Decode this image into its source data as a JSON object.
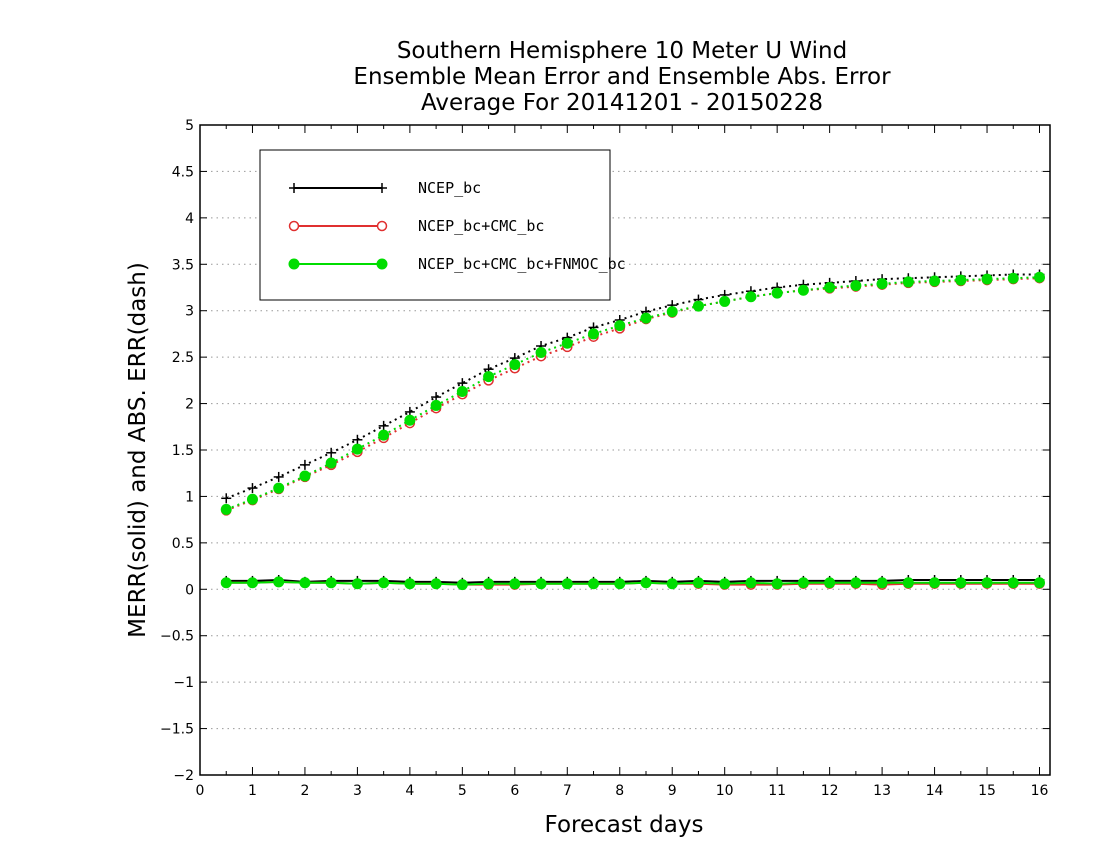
{
  "chart_data": {
    "type": "line",
    "title": [
      "Southern Hemisphere 10 Meter U Wind",
      "Ensemble Mean Error and Ensemble Abs. Error",
      "Average For 20141201 - 20150228"
    ],
    "xlabel": "Forecast days",
    "ylabel": "MERR(solid) and ABS. ERR(dash)",
    "xlim": [
      0,
      16.2
    ],
    "ylim": [
      -2,
      5
    ],
    "xticks": [
      0,
      1,
      2,
      3,
      4,
      5,
      6,
      7,
      8,
      9,
      10,
      11,
      12,
      13,
      14,
      15,
      16
    ],
    "yticks": [
      -2,
      -1.5,
      -1,
      -0.5,
      0,
      0.5,
      1,
      1.5,
      2,
      2.5,
      3,
      3.5,
      4,
      4.5,
      5
    ],
    "ytick_labels": [
      "−2",
      "−1.5",
      "−1",
      "−0.5",
      "0",
      "0.5",
      "1",
      "1.5",
      "2",
      "2.5",
      "3",
      "3.5",
      "4",
      "4.5",
      "5"
    ],
    "grid": "horizontal dotted",
    "legend_position": "top-left",
    "x": [
      0.5,
      1,
      1.5,
      2,
      2.5,
      3,
      3.5,
      4,
      4.5,
      5,
      5.5,
      6,
      6.5,
      7,
      7.5,
      8,
      8.5,
      9,
      9.5,
      10,
      10.5,
      11,
      11.5,
      12,
      12.5,
      13,
      13.5,
      14,
      14.5,
      15,
      15.5,
      16
    ],
    "series": [
      {
        "name": "NCEP_bc",
        "color": "#000000",
        "marker": "plus",
        "merr": [
          0.09,
          0.09,
          0.1,
          0.08,
          0.09,
          0.09,
          0.09,
          0.08,
          0.08,
          0.07,
          0.08,
          0.08,
          0.08,
          0.08,
          0.08,
          0.08,
          0.09,
          0.08,
          0.09,
          0.08,
          0.09,
          0.09,
          0.09,
          0.09,
          0.09,
          0.09,
          0.1,
          0.1,
          0.1,
          0.1,
          0.1,
          0.1
        ],
        "abs_err": [
          0.98,
          1.09,
          1.21,
          1.34,
          1.47,
          1.61,
          1.76,
          1.91,
          2.07,
          2.22,
          2.37,
          2.49,
          2.62,
          2.71,
          2.82,
          2.9,
          2.99,
          3.06,
          3.12,
          3.17,
          3.21,
          3.25,
          3.28,
          3.3,
          3.32,
          3.34,
          3.35,
          3.36,
          3.37,
          3.38,
          3.39,
          3.39
        ]
      },
      {
        "name": "NCEP_bc+CMC_bc",
        "color": "#e03030",
        "marker": "open-circle",
        "merr": [
          0.07,
          0.07,
          0.08,
          0.07,
          0.07,
          0.06,
          0.07,
          0.06,
          0.06,
          0.05,
          0.05,
          0.05,
          0.06,
          0.06,
          0.06,
          0.06,
          0.07,
          0.06,
          0.06,
          0.05,
          0.05,
          0.05,
          0.06,
          0.06,
          0.06,
          0.05,
          0.06,
          0.06,
          0.06,
          0.06,
          0.06,
          0.06
        ],
        "abs_err": [
          0.85,
          0.96,
          1.08,
          1.21,
          1.34,
          1.48,
          1.63,
          1.79,
          1.95,
          2.1,
          2.25,
          2.38,
          2.51,
          2.61,
          2.72,
          2.81,
          2.91,
          2.98,
          3.05,
          3.1,
          3.15,
          3.19,
          3.22,
          3.24,
          3.26,
          3.28,
          3.3,
          3.31,
          3.32,
          3.33,
          3.34,
          3.35
        ]
      },
      {
        "name": "NCEP_bc+CMC_bc+FNMOC_bc",
        "color": "#00dd00",
        "marker": "filled-circle",
        "merr": [
          0.07,
          0.07,
          0.08,
          0.07,
          0.07,
          0.06,
          0.07,
          0.06,
          0.06,
          0.05,
          0.06,
          0.06,
          0.06,
          0.06,
          0.06,
          0.06,
          0.07,
          0.06,
          0.07,
          0.06,
          0.07,
          0.06,
          0.07,
          0.07,
          0.07,
          0.07,
          0.07,
          0.07,
          0.07,
          0.07,
          0.07,
          0.07
        ],
        "abs_err": [
          0.86,
          0.97,
          1.09,
          1.22,
          1.36,
          1.51,
          1.66,
          1.82,
          1.98,
          2.13,
          2.29,
          2.42,
          2.55,
          2.65,
          2.75,
          2.84,
          2.92,
          2.99,
          3.05,
          3.1,
          3.15,
          3.19,
          3.22,
          3.25,
          3.27,
          3.29,
          3.31,
          3.32,
          3.33,
          3.34,
          3.35,
          3.36
        ]
      }
    ]
  }
}
